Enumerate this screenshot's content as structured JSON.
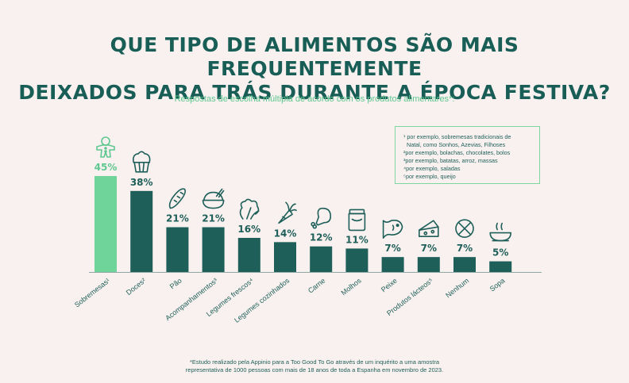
{
  "header": {
    "title_line1": "QUE TIPO DE ALIMENTOS SÃO MAIS FREQUENTEMENTE",
    "title_line2": "DEIXADOS PARA TRÁS DURANTE A ÉPOCA FESTIVA?",
    "subtitle": "Respostas de escolha múltipla de acordo com os produtos alimentares*:"
  },
  "legend_notes": [
    "¹ por exemplo, sobremesas tradicionais de",
    "Natal, como Sonhos, Azevias, Filhoses",
    "²por exemplo, bolachas, chocolates, bolos",
    "³por exemplo, batatas, arroz, massas",
    "⁴por exemplo, saladas",
    "⁵por exemplo, queijo"
  ],
  "footnote": {
    "line1": "*Estudo realizado pela Appinio para a Too Good To Go através de um inquérito a uma amostra",
    "line2": "representativa de 1000 pessoas com mais de 18 anos de toda a Espanha em novembro de 2023."
  },
  "colors": {
    "highlight": "#6fd49a",
    "bar": "#1e5f59",
    "icon_highlight": "#5fc790",
    "icon": "#1e5f59"
  },
  "chart_data": {
    "type": "bar",
    "categories": [
      "Sobremesas¹",
      "Doces²",
      "Pão",
      "Acompanhamentos³",
      "Legumes frescos⁴",
      "Legumes cozinhados",
      "Carne",
      "Molhos",
      "Peixe",
      "Produtos lácteos⁵",
      "Nenhum",
      "Sopa"
    ],
    "values": [
      45,
      38,
      21,
      21,
      16,
      14,
      12,
      11,
      7,
      7,
      7,
      5
    ],
    "value_labels": [
      "45%",
      "38%",
      "21%",
      "21%",
      "16%",
      "14%",
      "12%",
      "11%",
      "7%",
      "7%",
      "7%",
      "5%"
    ],
    "icons": [
      "gingerbread-icon",
      "cupcake-icon",
      "baguette-icon",
      "rice-bowl-icon",
      "lettuce-icon",
      "carrot-icon",
      "drumstick-icon",
      "sauce-jar-icon",
      "fish-icon",
      "cheese-icon",
      "no-symbol-icon",
      "soup-bowl-icon"
    ],
    "highlight_index": 0,
    "unit": "%",
    "ylim": [
      0,
      45
    ],
    "grid": false
  }
}
